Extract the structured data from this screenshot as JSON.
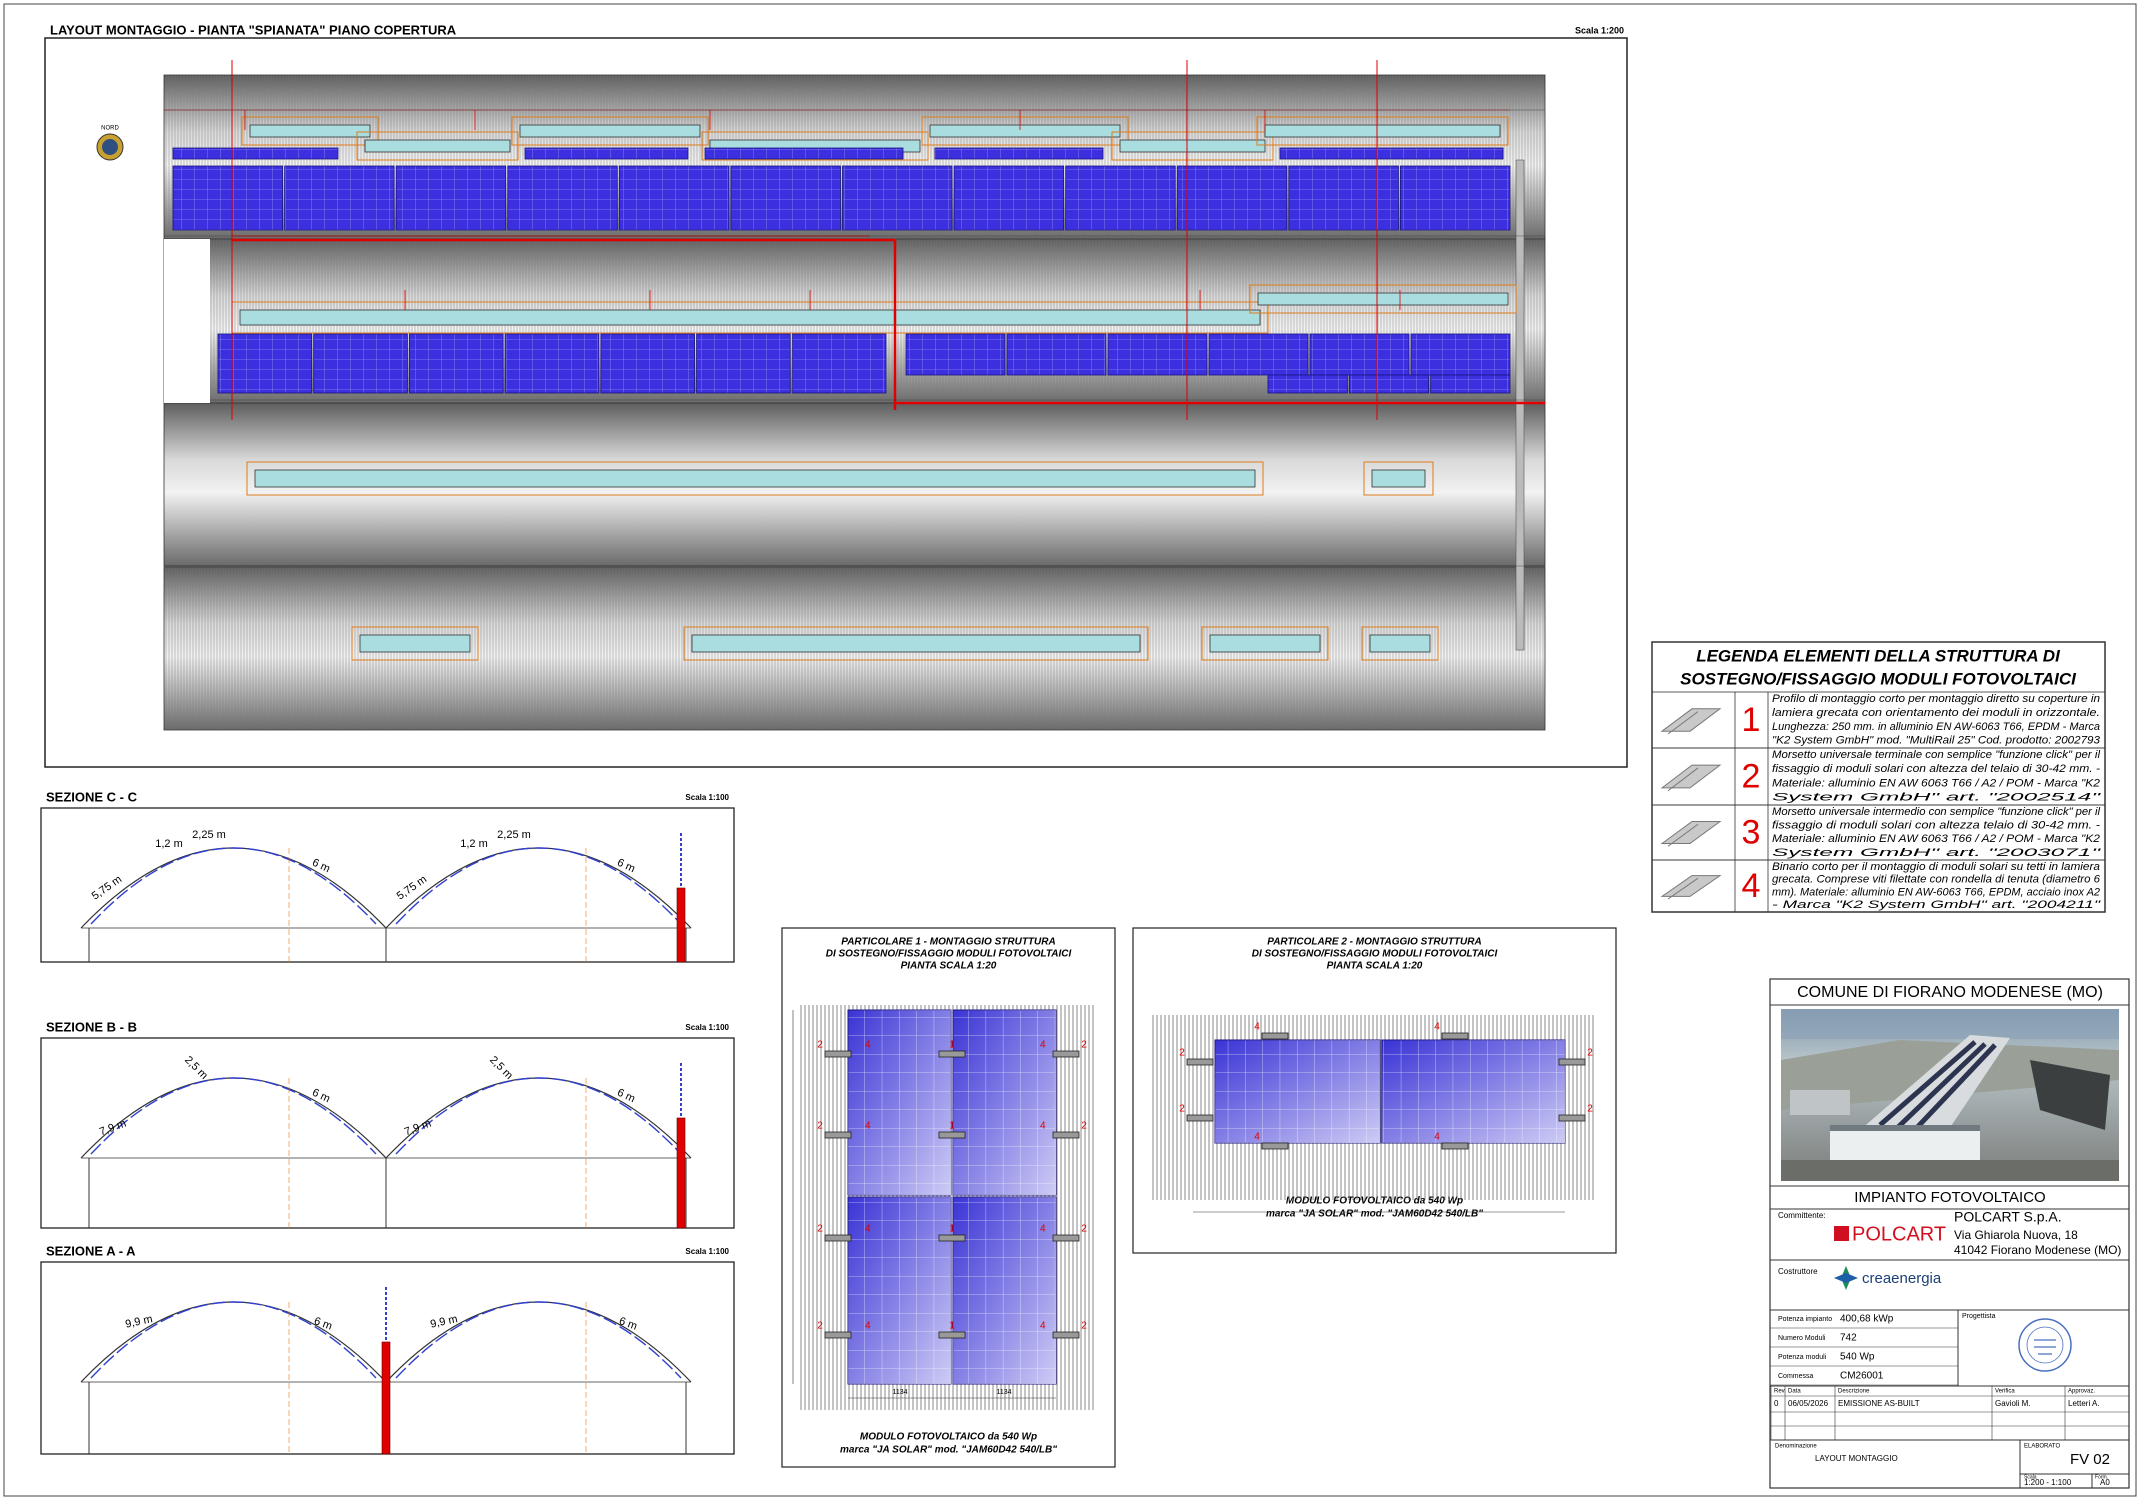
{
  "header": {
    "title": "LAYOUT MONTAGGIO - PIANTA \"SPIANATA\" PIANO COPERTURA",
    "scale": "Scala 1:200",
    "compass": "NORD"
  },
  "legend": {
    "title": [
      "LEGENDA ELEMENTI DELLA STRUTTURA DI",
      "SOSTEGNO/FISSAGGIO MODULI FOTOVOLTAICI"
    ],
    "items": [
      {
        "number": "1",
        "lines": [
          "Profilo di montaggio corto per montaggio diretto su coperture in",
          "lamiera grecata con orientamento dei moduli in orizzontale.",
          "Lunghezza: 250 mm. in alluminio EN AW-6063 T66, EPDM - Marca",
          "\"K2 System GmbH\" mod. \"MultiRail 25\" Cod. prodotto: 2002793"
        ]
      },
      {
        "number": "2",
        "lines": [
          "Morsetto universale terminale con semplice \"funzione click\" per il",
          "fissaggio di moduli solari con altezza del telaio di 30-42 mm. -",
          "Materiale: alluminio EN AW 6063 T66 / A2 / POM - Marca \"K2",
          "System GmbH\" art. \"2002514\""
        ]
      },
      {
        "number": "3",
        "lines": [
          "Morsetto universale intermedio con semplice \"funzione click\" per il",
          "fissaggio di moduli solari con altezza telaio di 30-42 mm. -",
          "Materiale: alluminio EN AW 6063 T66 / A2 / POM - Marca \"K2",
          "System GmbH\" art. \"2003071\""
        ]
      },
      {
        "number": "4",
        "lines": [
          "Binario corto per il montaggio di moduli solari su tetti in lamiera",
          "grecata. Comprese viti filettate con rondella di tenuta (diametro 6",
          "mm). Materiale: alluminio EN AW-6063 T66, EPDM, acciaio inox A2",
          "- Marca \"K2 System GmbH\" art. \"2004211\""
        ]
      }
    ]
  },
  "sections": [
    {
      "title": "SEZIONE C - C",
      "scale": "Scala 1:100",
      "labels": [
        "1,2 m",
        "2,25 m",
        "5,75 m",
        "6 m"
      ]
    },
    {
      "title": "SEZIONE B - B",
      "scale": "Scala 1:100",
      "labels": [
        "7,9 m",
        "2,5 m",
        "6 m"
      ]
    },
    {
      "title": "SEZIONE A - A",
      "scale": "Scala 1:100",
      "labels": [
        "9,9 m",
        "6 m"
      ]
    }
  ],
  "details": [
    {
      "title": [
        "PARTICOLARE 1 - MONTAGGIO STRUTTURA",
        "DI SOSTEGNO/FISSAGGIO MODULI FOTOVOLTAICI",
        "PIANTA SCALA 1:20"
      ],
      "caption": [
        "MODULO FOTOVOLTAICO da 540 Wp",
        "marca \"JA SOLAR\" mod. \"JAM60D42 540/LB\""
      ],
      "dimension": "1134"
    },
    {
      "title": [
        "PARTICOLARE 2 - MONTAGGIO STRUTTURA",
        "DI SOSTEGNO/FISSAGGIO MODULI FOTOVOLTAICI",
        "PIANTA SCALA 1:20"
      ],
      "caption": [
        "MODULO FOTOVOLTAICO da 540 Wp",
        "marca \"JA SOLAR\" mod. \"JAM60D42 540/LB\""
      ]
    }
  ],
  "clamp_labels": [
    "1",
    "2",
    "4"
  ],
  "title_block": {
    "municipality": "COMUNE DI FIORANO MODENESE (MO)",
    "project": "IMPIANTO FOTOVOLTAICO",
    "client_label": "Committente:",
    "client_logo": "POLCART",
    "client_name": "POLCART S.p.A.",
    "client_address": [
      "Via Ghiarola Nuova, 18",
      "41042 Fiorano Modenese (MO)"
    ],
    "builder_label": "Costruttore",
    "builder_logo": "creaenergia",
    "specs": [
      [
        "Potenza impianto",
        "400,68 kWp"
      ],
      [
        "Numero Moduli",
        "742"
      ],
      [
        "Potenza moduli",
        "540 Wp"
      ],
      [
        "Commessa",
        "CM26001"
      ]
    ],
    "designer_label": "Progettista",
    "revision_header": [
      "Rev.",
      "Data",
      "Descrizione",
      "Verifica",
      "Approvaz."
    ],
    "revisions": [
      [
        "0",
        "06/05/2026",
        "EMISSIONE AS-BUILT",
        "Gavioli M.",
        "Letteri A."
      ]
    ],
    "name_label": "Denominazione",
    "name": "LAYOUT MONTAGGIO",
    "drawing_label": "ELABORATO",
    "drawing": "FV 02",
    "scale_label": "Scala",
    "scale": "1:200 - 1:100",
    "format_label": "Form.",
    "format": "A0"
  }
}
